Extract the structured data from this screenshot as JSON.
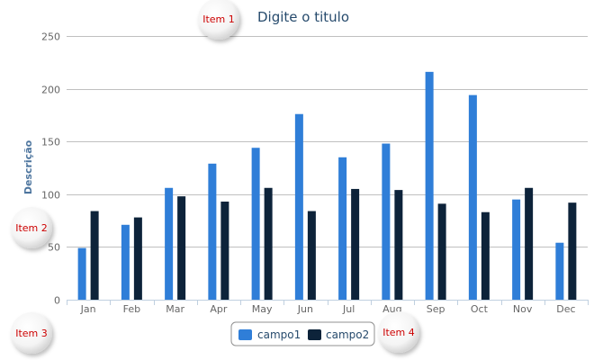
{
  "chart_data": {
    "type": "bar",
    "title": "Digite o titulo",
    "ylabel": "Descrição",
    "xlabel": "",
    "categories": [
      "Jan",
      "Feb",
      "Mar",
      "Apr",
      "May",
      "Jun",
      "Jul",
      "Aug",
      "Sep",
      "Oct",
      "Nov",
      "Dec"
    ],
    "series": [
      {
        "name": "campo1",
        "color": "#2f7ed8",
        "values": [
          49,
          71,
          106,
          129,
          144,
          176,
          135,
          148,
          216,
          194,
          95,
          54
        ]
      },
      {
        "name": "campo2",
        "color": "#0d233a",
        "values": [
          84,
          78,
          98,
          93,
          106,
          84,
          105,
          104,
          91,
          83,
          106,
          92
        ]
      }
    ],
    "ylim": [
      0,
      250
    ],
    "yticks": [
      0,
      50,
      100,
      150,
      200,
      250
    ],
    "grid": true,
    "legend_position": "bottom-center"
  },
  "annotations": [
    {
      "label": "Item 1"
    },
    {
      "label": "Item 2"
    },
    {
      "label": "Item 3"
    },
    {
      "label": "Item 4"
    }
  ]
}
